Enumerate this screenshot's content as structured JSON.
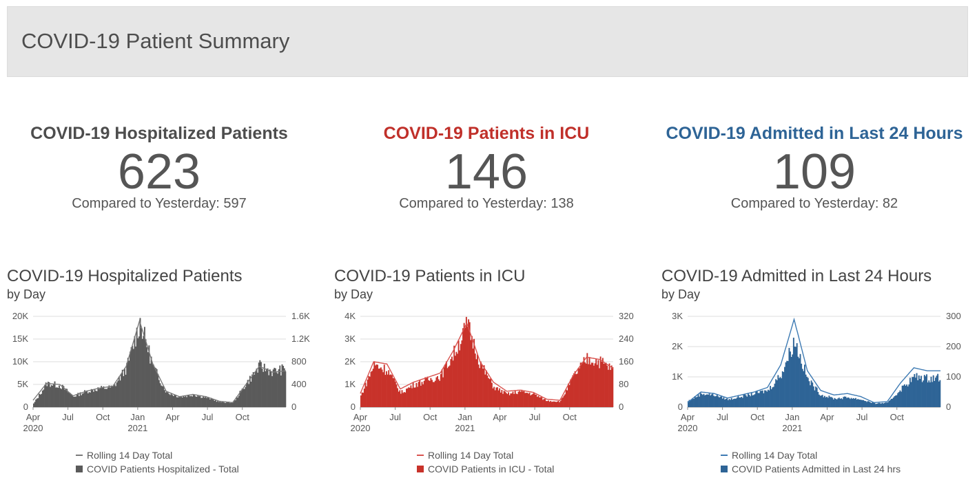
{
  "header": {
    "title": "COVID-19 Patient Summary"
  },
  "kpis": [
    {
      "title": "COVID-19 Hospitalized Patients",
      "value": "623",
      "compare": "Compared to Yesterday: 597",
      "color": "#4d4d4d"
    },
    {
      "title": "COVID-19 Patients in ICU",
      "value": "146",
      "compare": "Compared to Yesterday: 138",
      "color": "#c0302a"
    },
    {
      "title": "COVID-19 Admitted in Last 24 Hours",
      "value": "109",
      "compare": "Compared to Yesterday: 82",
      "color": "#2e6496"
    }
  ],
  "charts": [
    {
      "title": "COVID-19 Hospitalized Patients",
      "subtitle": "by Day",
      "legend_line": "Rolling 14 Day Total",
      "legend_bar": "COVID Patients Hospitalized - Total",
      "bar_color": "#5a5a5a",
      "line_color": "#7a7a7a"
    },
    {
      "title": "COVID-19 Patients in ICU",
      "subtitle": "by Day",
      "legend_line": "Rolling 14 Day Total",
      "legend_bar": "COVID Patients in ICU - Total",
      "bar_color": "#c8322a",
      "line_color": "#d9534f"
    },
    {
      "title": "COVID-19 Admitted in Last 24 Hours",
      "subtitle": "by Day",
      "legend_line": "Rolling 14 Day Total",
      "legend_bar": "COVID Patients Admitted in Last 24 hrs",
      "bar_color": "#2e6496",
      "line_color": "#3d7ab3"
    }
  ],
  "chart_data": [
    {
      "type": "bar",
      "title": "COVID-19 Hospitalized Patients",
      "x_ticks": [
        "Apr",
        "Jul",
        "Oct",
        "Jan",
        "Apr",
        "Jul",
        "Oct"
      ],
      "x_years": [
        "2020",
        "2021"
      ],
      "y_left_ticks": [
        "0",
        "5K",
        "10K",
        "15K",
        "20K"
      ],
      "y_right_ticks": [
        "0",
        "400",
        "800",
        "1.2K",
        "1.6K"
      ],
      "ylim_right": [
        0,
        1600
      ],
      "series": [
        {
          "name": "COVID Patients Hospitalized - Total",
          "axis": "right",
          "x": [
            "2020-04",
            "2020-05",
            "2020-06",
            "2020-07",
            "2020-08",
            "2020-09",
            "2020-10",
            "2020-11",
            "2020-12",
            "2021-01",
            "2021-02",
            "2021-03",
            "2021-04",
            "2021-05",
            "2021-06",
            "2021-07",
            "2021-08",
            "2021-09",
            "2021-10",
            "2021-11"
          ],
          "values": [
            60,
            420,
            380,
            190,
            280,
            330,
            350,
            700,
            1500,
            700,
            260,
            180,
            220,
            170,
            90,
            80,
            420,
            720,
            620,
            680
          ]
        },
        {
          "name": "Rolling 14 Day Total",
          "axis": "left",
          "x": [
            "2020-04",
            "2020-05",
            "2020-06",
            "2020-07",
            "2020-08",
            "2020-09",
            "2020-10",
            "2020-11",
            "2020-12",
            "2021-01",
            "2021-02",
            "2021-03",
            "2021-04",
            "2021-05",
            "2021-06",
            "2021-07",
            "2021-08",
            "2021-09",
            "2021-10",
            "2021-11"
          ],
          "values": [
            1500,
            5200,
            5000,
            2500,
            3500,
            4200,
            4600,
            9000,
            19000,
            9500,
            3500,
            2300,
            2800,
            2300,
            1300,
            1000,
            5000,
            9000,
            7700,
            8000
          ]
        }
      ]
    },
    {
      "type": "bar",
      "title": "COVID-19 Patients in ICU",
      "x_ticks": [
        "Apr",
        "Jul",
        "Oct",
        "Jan",
        "Apr",
        "Jul",
        "Oct"
      ],
      "x_years": [
        "2020",
        "2021"
      ],
      "y_left_ticks": [
        "0",
        "1K",
        "2K",
        "3K",
        "4K"
      ],
      "y_right_ticks": [
        "0",
        "80",
        "160",
        "240",
        "320"
      ],
      "ylim_right": [
        0,
        320
      ],
      "series": [
        {
          "name": "COVID Patients in ICU - Total",
          "axis": "right",
          "x": [
            "2020-04",
            "2020-05",
            "2020-06",
            "2020-07",
            "2020-08",
            "2020-09",
            "2020-10",
            "2020-11",
            "2020-12",
            "2021-01",
            "2021-02",
            "2021-03",
            "2021-04",
            "2021-05",
            "2021-06",
            "2021-07",
            "2021-08",
            "2021-09",
            "2021-10",
            "2021-11"
          ],
          "values": [
            40,
            150,
            130,
            50,
            80,
            95,
            110,
            190,
            290,
            150,
            70,
            45,
            55,
            45,
            22,
            20,
            110,
            170,
            160,
            130
          ]
        },
        {
          "name": "Rolling 14 Day Total",
          "axis": "left",
          "x": [
            "2020-04",
            "2020-05",
            "2020-06",
            "2020-07",
            "2020-08",
            "2020-09",
            "2020-10",
            "2020-11",
            "2020-12",
            "2021-01",
            "2021-02",
            "2021-03",
            "2021-04",
            "2021-05",
            "2021-06",
            "2021-07",
            "2021-08",
            "2021-09",
            "2021-10",
            "2021-11"
          ],
          "values": [
            600,
            2000,
            1900,
            800,
            1100,
            1300,
            1500,
            2500,
            3700,
            2000,
            1100,
            700,
            750,
            650,
            350,
            300,
            1400,
            2200,
            2100,
            1700
          ]
        }
      ]
    },
    {
      "type": "bar",
      "title": "COVID-19 Admitted in Last 24 Hours",
      "x_ticks": [
        "Apr",
        "Jul",
        "Oct",
        "Jan",
        "Apr",
        "Jul",
        "Oct"
      ],
      "x_years": [
        "2020",
        "2021"
      ],
      "y_left_ticks": [
        "0",
        "1K",
        "2K",
        "3K"
      ],
      "y_right_ticks": [
        "0",
        "100",
        "200",
        "300"
      ],
      "ylim_right": [
        0,
        300
      ],
      "series": [
        {
          "name": "COVID Patients Admitted in Last 24 hrs",
          "axis": "right",
          "x": [
            "2020-04",
            "2020-05",
            "2020-06",
            "2020-07",
            "2020-08",
            "2020-09",
            "2020-10",
            "2020-11",
            "2020-12",
            "2021-01",
            "2021-02",
            "2021-03",
            "2021-04",
            "2021-05",
            "2021-06",
            "2021-07",
            "2021-08",
            "2021-09",
            "2021-10",
            "2021-11"
          ],
          "values": [
            20,
            45,
            40,
            25,
            35,
            45,
            55,
            110,
            220,
            90,
            40,
            28,
            32,
            25,
            12,
            14,
            60,
            100,
            95,
            100
          ]
        },
        {
          "name": "Rolling 14 Day Total",
          "axis": "left",
          "x": [
            "2020-04",
            "2020-05",
            "2020-06",
            "2020-07",
            "2020-08",
            "2020-09",
            "2020-10",
            "2020-11",
            "2020-12",
            "2021-01",
            "2021-02",
            "2021-03",
            "2021-04",
            "2021-05",
            "2021-06",
            "2021-07",
            "2021-08",
            "2021-09",
            "2021-10",
            "2021-11"
          ],
          "values": [
            150,
            500,
            450,
            300,
            400,
            500,
            650,
            1400,
            2900,
            1200,
            550,
            400,
            450,
            350,
            150,
            180,
            800,
            1300,
            1200,
            1200
          ]
        }
      ]
    }
  ]
}
